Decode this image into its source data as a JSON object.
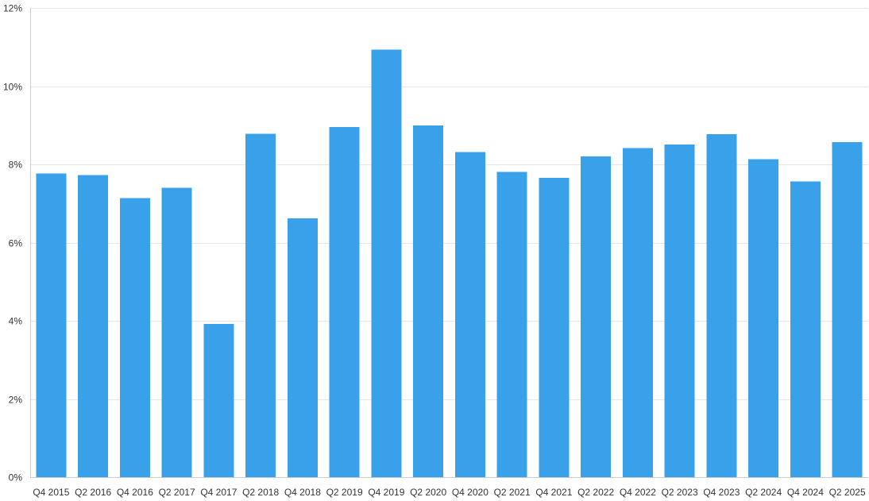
{
  "chart_data": {
    "type": "bar",
    "title": "",
    "xlabel": "",
    "ylabel": "",
    "categories": [
      "Q4 2015",
      "Q2 2016",
      "Q4 2016",
      "Q2 2017",
      "Q4 2017",
      "Q2 2018",
      "Q4 2018",
      "Q2 2019",
      "Q4 2019",
      "Q2 2020",
      "Q4 2020",
      "Q2 2021",
      "Q4 2021",
      "Q2 2022",
      "Q4 2022",
      "Q2 2023",
      "Q4 2023",
      "Q2 2024",
      "Q4 2024",
      "Q2 2025"
    ],
    "values": [
      7.77,
      7.73,
      7.14,
      7.4,
      3.92,
      8.78,
      6.62,
      8.95,
      10.93,
      8.99,
      8.31,
      7.81,
      7.66,
      8.2,
      8.42,
      8.51,
      8.77,
      8.13,
      7.56,
      8.57
    ],
    "ylim": [
      0,
      12
    ],
    "yticks": [
      0,
      2,
      4,
      6,
      8,
      10,
      12
    ],
    "ytick_labels": [
      "0%",
      "2%",
      "4%",
      "6%",
      "8%",
      "10%",
      "12%"
    ],
    "grid": true,
    "legend": "none",
    "bar_color": "#38a1ea"
  }
}
